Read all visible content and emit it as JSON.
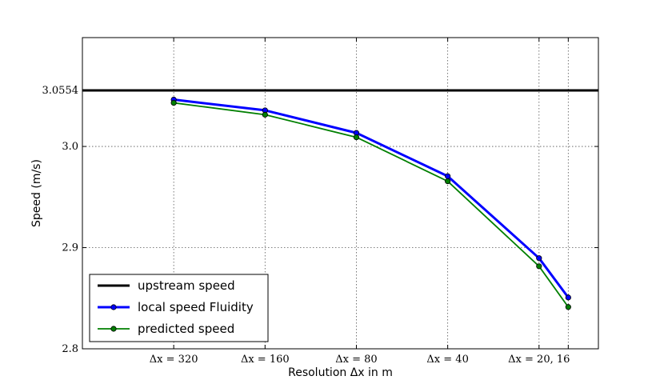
{
  "chart_data": {
    "type": "line",
    "title": "",
    "xlabel": "Resolution Δx in m",
    "ylabel": "Speed (m/s)",
    "categories": [
      "Δx = 320",
      "Δx = 160",
      "Δx = 80",
      "Δx = 40",
      "Δx = 20, 16"
    ],
    "x": [
      1,
      2,
      3,
      4,
      5,
      5.32
    ],
    "xlim": [
      0.0,
      5.65
    ],
    "ylim": [
      2.8,
      3.1076
    ],
    "yticks": [
      2.8,
      2.9,
      3.0,
      3.0554
    ],
    "ytick_labels": [
      "2.8",
      "2.9",
      "3.0",
      "3.0554"
    ],
    "grid": true,
    "legend_position": "lower-left",
    "hline": {
      "name": "upstream speed",
      "value": 3.0554,
      "color": "#000000"
    },
    "series": [
      {
        "name": "local speed Fluidity",
        "color": "#0000ff",
        "x": [
          1,
          2,
          3,
          4,
          5,
          5.32
        ],
        "values": [
          3.0463,
          3.0357,
          3.0134,
          2.9706,
          2.8896,
          2.8507
        ]
      },
      {
        "name": "predicted speed",
        "color": "#007f00",
        "x": [
          1,
          2,
          3,
          4,
          5,
          5.32
        ],
        "values": [
          3.0431,
          3.0314,
          3.0091,
          2.9656,
          2.8816,
          2.8413
        ]
      }
    ],
    "legend": [
      "upstream speed",
      "local speed Fluidity",
      "predicted speed"
    ]
  }
}
